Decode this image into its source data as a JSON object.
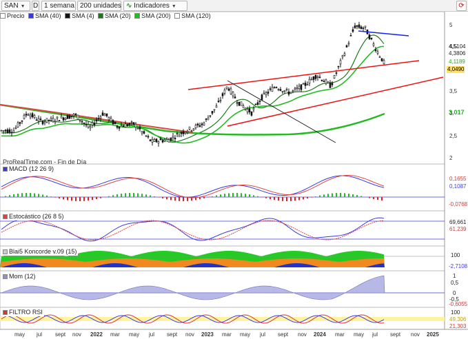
{
  "toolbar": {
    "symbol": "SAN",
    "d_label": "D",
    "timeframe": "1 semana",
    "units": "200 unidades",
    "indicators": "Indicadores"
  },
  "legend": {
    "price": "Precio",
    "items": [
      {
        "label": "SMA (40)",
        "color": "#3a3ae0"
      },
      {
        "label": "SMA (4)",
        "color": "#111111"
      },
      {
        "label": "SMA (20)",
        "color": "#1a7a1a"
      },
      {
        "label": "SMA (200)",
        "color": "#22bb22"
      },
      {
        "label": "SMA (120)",
        "color": "#ffffff"
      }
    ]
  },
  "watermark": "ProRealTime.com - Fin de Día",
  "main_axis": {
    "ticks": [
      "5",
      "4,5",
      "4",
      "3,5",
      "3",
      "2,5",
      "2"
    ]
  },
  "price_tags": [
    {
      "text": "4,5104",
      "bg": "#ffffff",
      "color": "#333333"
    },
    {
      "text": "4,3806",
      "bg": "#ffffff",
      "color": "#333333"
    },
    {
      "text": "4,1189",
      "bg": "#ffffff",
      "color": "#22aa22"
    },
    {
      "text": "4,0490",
      "bg": "#ffe066",
      "color": "#000000"
    },
    {
      "text": "3,017",
      "bg": "#ffffff",
      "color": "#22aa22"
    }
  ],
  "panels": {
    "macd": {
      "title": "MACD (12 26 9)",
      "ticks": [
        "0,1655",
        "0,1087",
        "-0,0768"
      ]
    },
    "stoch": {
      "title": "Estocástico (26 8 5)",
      "ticks": [
        "69,661",
        "61,239"
      ]
    },
    "koncorde": {
      "title": "Blai5 Koncorde v.09 (15)",
      "ticks": [
        "100",
        "-2,7108"
      ]
    },
    "mom": {
      "title": "Mom (12)",
      "ticks": [
        "1",
        "0,5",
        "0",
        "-0,5",
        "-0,6055"
      ]
    },
    "rsi": {
      "title": "FILTRO RSI",
      "ticks": [
        "100",
        "49,306",
        "21,303"
      ]
    }
  },
  "x_axis": {
    "labels": [
      "may",
      "jul",
      "sept",
      "nov",
      "2022",
      "mar",
      "may",
      "jul",
      "sept",
      "nov",
      "2023",
      "mar",
      "may",
      "jul",
      "sept",
      "nov",
      "2024",
      "mar",
      "may",
      "jul",
      "sept",
      "nov",
      "2025"
    ]
  },
  "colors": {
    "candle": "#111111",
    "sma4": "#111111",
    "sma20": "#1a7a1a",
    "sma40": "#2233cc",
    "sma200": "#22bb22",
    "trend_red": "#ee1111",
    "trend_blue": "#1122ee",
    "trend_black": "#222222"
  }
}
